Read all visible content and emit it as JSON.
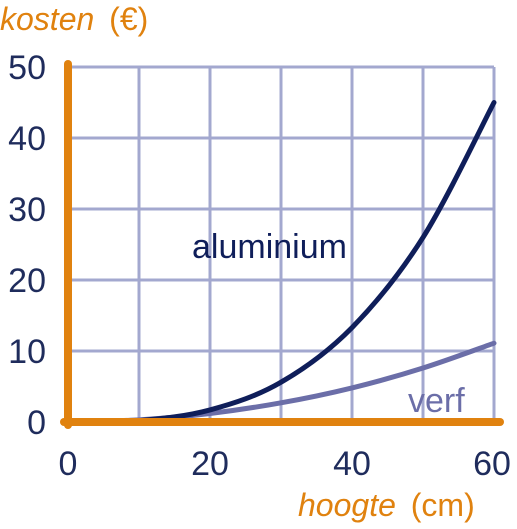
{
  "colors": {
    "axis": "#e0820f",
    "grid": "#a3a8cf",
    "tick_text": "#1f2c5c",
    "aluminium": "#0f1e5a",
    "verf": "#6b6ea8"
  },
  "chart_data": {
    "type": "line",
    "ylabel_italic": "kosten",
    "ylabel_unit": "(€)",
    "xlabel_italic": "hoogte",
    "xlabel_unit": "(cm)",
    "xlim": [
      0,
      60
    ],
    "ylim": [
      0,
      50
    ],
    "x_ticks": [
      0,
      20,
      40,
      60
    ],
    "y_ticks": [
      0,
      10,
      20,
      30,
      40,
      50
    ],
    "grid": true,
    "series": [
      {
        "name": "aluminium",
        "x": [
          0,
          10,
          20,
          30,
          40,
          50,
          60
        ],
        "y": [
          0,
          0.2,
          1.7,
          5.6,
          13.3,
          26.0,
          45.0
        ]
      },
      {
        "name": "verf",
        "x": [
          0,
          10,
          20,
          30,
          40,
          50,
          60
        ],
        "y": [
          0,
          0.3,
          1.2,
          2.7,
          4.8,
          7.6,
          11.1
        ]
      }
    ]
  }
}
